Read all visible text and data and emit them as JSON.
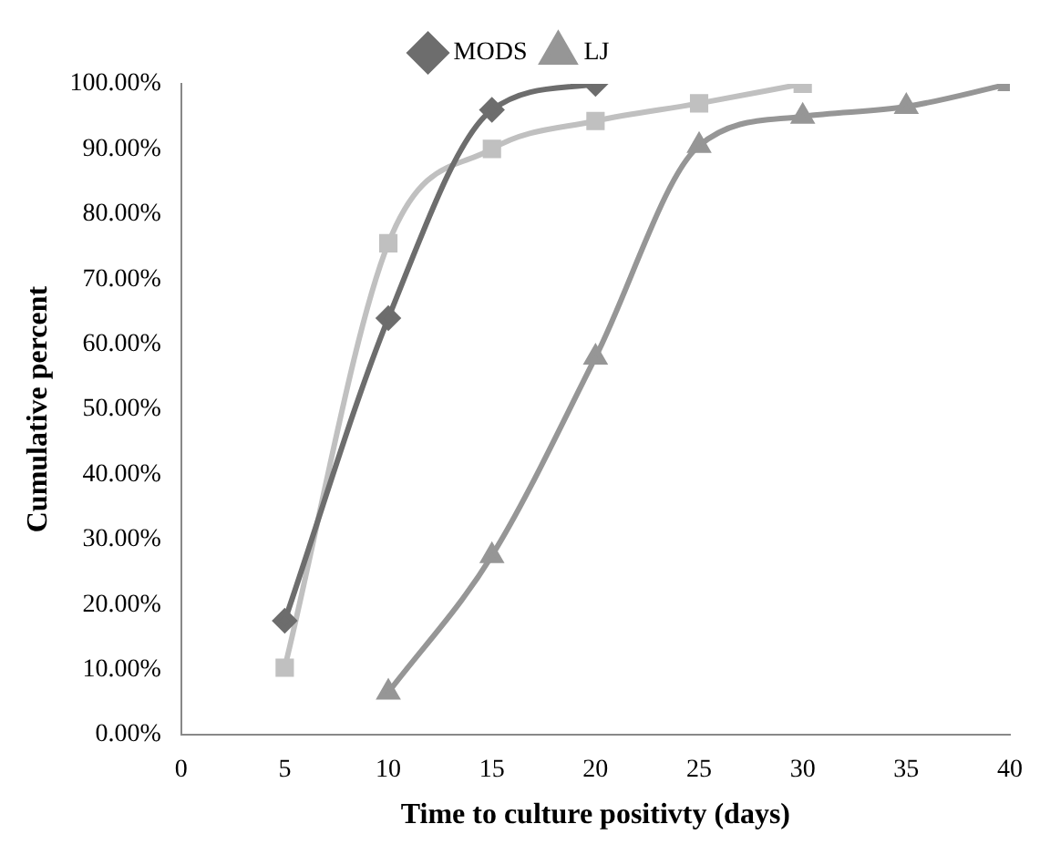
{
  "chart_data": {
    "type": "line",
    "xlabel": "Time to culture positivty (days)",
    "ylabel": "Cumulative percent",
    "series": [
      {
        "name": "MODS",
        "color": "#6d6d6d",
        "marker": "diamond",
        "x": [
          5,
          10,
          15,
          20
        ],
        "values": [
          17.5,
          64,
          96,
          100
        ]
      },
      {
        "color": "#c0c0c0",
        "marker": "square",
        "x": [
          5,
          10,
          15,
          20,
          25,
          30
        ],
        "values": [
          10.3,
          75.5,
          90,
          94.3,
          97,
          100
        ]
      },
      {
        "name": "LJ",
        "color": "#969696",
        "marker": "triangle",
        "x": [
          10,
          15,
          20,
          25,
          30,
          35,
          40
        ],
        "values": [
          6.5,
          27.5,
          58,
          90.5,
          95,
          96.5,
          100
        ]
      }
    ],
    "xlim": [
      0,
      40
    ],
    "xticks": [
      0,
      5,
      10,
      15,
      20,
      25,
      30,
      35,
      40
    ],
    "ylim": [
      0,
      100
    ],
    "yticks": [
      {
        "value": 0,
        "label": "0.00%"
      },
      {
        "value": 10,
        "label": "10.00%"
      },
      {
        "value": 20,
        "label": "20.00%"
      },
      {
        "value": 30,
        "label": "30.00%"
      },
      {
        "value": 40,
        "label": "40.00%"
      },
      {
        "value": 50,
        "label": "50.00%"
      },
      {
        "value": 60,
        "label": "60.00%"
      },
      {
        "value": 70,
        "label": "70.00%"
      },
      {
        "value": 80,
        "label": "80.00%"
      },
      {
        "value": 90,
        "label": "90.00%"
      },
      {
        "value": 100,
        "label": "100.00%"
      }
    ],
    "grid": false,
    "legend": "top"
  }
}
